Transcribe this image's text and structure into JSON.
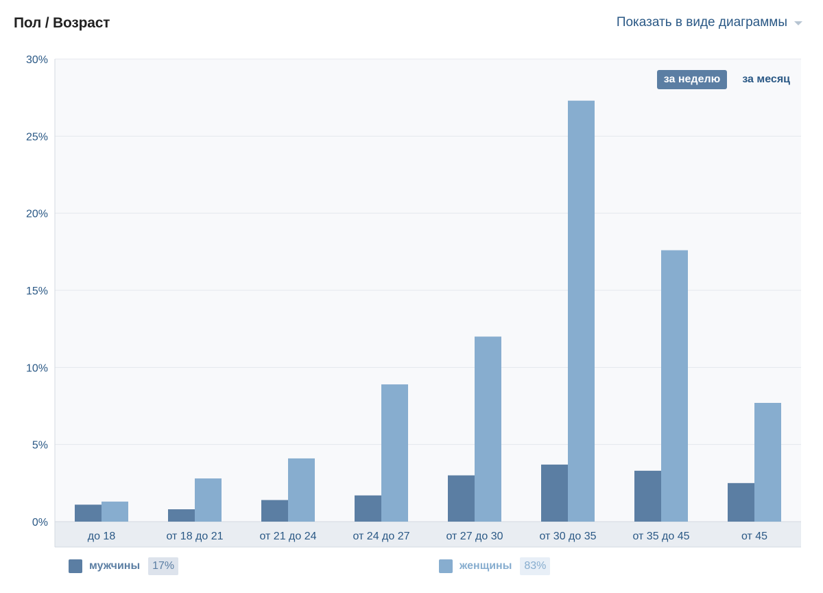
{
  "header": {
    "title": "Пол / Возраст",
    "view_toggle_label": "Показать в виде диаграммы"
  },
  "period_tabs": [
    {
      "label": "за неделю",
      "active": true
    },
    {
      "label": "за месяц",
      "active": false
    }
  ],
  "legend": [
    {
      "name": "мужчины",
      "percent": "17%",
      "color": "#5b7ea3",
      "label_color": "#5b7ea3",
      "badge_bg": "#dde3ec",
      "badge_color": "#5b7ea3"
    },
    {
      "name": "женщины",
      "percent": "83%",
      "color": "#87adcf",
      "label_color": "#87adcf",
      "badge_bg": "#e8eff7",
      "badge_color": "#87adcf"
    }
  ],
  "chart_data": {
    "type": "bar",
    "categories": [
      "до 18",
      "от 18 до 21",
      "от 21 до 24",
      "от 24 до 27",
      "от 27 до 30",
      "от 30 до 35",
      "от 35 до 45",
      "от 45"
    ],
    "series": [
      {
        "name": "мужчины",
        "color": "#5b7ea3",
        "values": [
          1.1,
          0.8,
          1.4,
          1.7,
          3.0,
          3.7,
          3.3,
          2.5
        ]
      },
      {
        "name": "женщины",
        "color": "#87adcf",
        "values": [
          1.3,
          2.8,
          4.1,
          8.9,
          12.0,
          27.3,
          17.6,
          7.7
        ]
      }
    ],
    "yticks": [
      "0%",
      "5%",
      "10%",
      "15%",
      "20%",
      "25%",
      "30%"
    ],
    "ylim": [
      0,
      30
    ],
    "grid": true
  }
}
